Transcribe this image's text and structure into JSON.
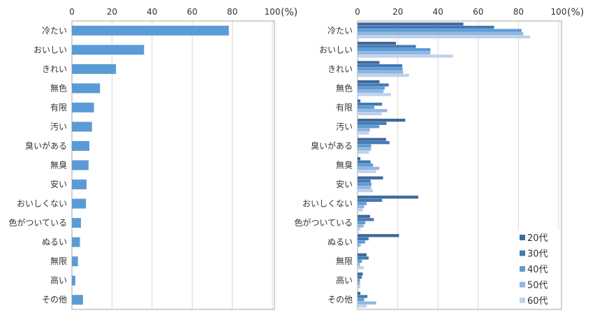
{
  "chart_data": [
    {
      "type": "bar",
      "orientation": "horizontal",
      "categories": [
        "冷たい",
        "おいしい",
        "きれい",
        "無色",
        "有限",
        "汚い",
        "臭いがある",
        "無臭",
        "安い",
        "おいしくない",
        "色がついている",
        "ぬるい",
        "無限",
        "高い",
        "その他"
      ],
      "values": [
        78.3,
        36,
        22,
        14,
        11,
        10,
        8.7,
        8.3,
        7.3,
        7,
        4.5,
        4,
        3,
        1.7,
        5.5
      ],
      "xlim": [
        0,
        100
      ],
      "xticks": [
        "0",
        "20",
        "40",
        "60",
        "80",
        "100"
      ],
      "unit": "(%)",
      "grid": true,
      "color": "#5b9bd5"
    },
    {
      "type": "bar",
      "orientation": "horizontal",
      "categories": [
        "冷たい",
        "おいしい",
        "きれい",
        "無色",
        "有限",
        "汚い",
        "臭いがある",
        "無臭",
        "安い",
        "おいしくない",
        "色がついている",
        "ぬるい",
        "無限",
        "高い",
        "その他"
      ],
      "xlim": [
        0,
        100
      ],
      "xticks": [
        "0",
        "20",
        "40",
        "60",
        "80",
        "100"
      ],
      "unit": "(%)",
      "grid": true,
      "legend": "bottom-right",
      "series": [
        {
          "name": "20代",
          "color": "#3d6a9a",
          "values": [
            52.6,
            19.1,
            10.9,
            10.9,
            1.4,
            23.7,
            14.2,
            1.4,
            12.7,
            30.2,
            6.2,
            20.6,
            4.5,
            2.6,
            1.4
          ]
        },
        {
          "name": "30代",
          "color": "#4479b4",
          "values": [
            67.9,
            29,
            22.2,
            15.5,
            12.2,
            14.4,
            15.9,
            6.5,
            6.5,
            12.2,
            8.1,
            5.5,
            5.5,
            2.1,
            4.9
          ]
        },
        {
          "name": "40代",
          "color": "#5b9bd5",
          "values": [
            81.6,
            36.2,
            22.4,
            13.5,
            8.3,
            10.8,
            6.7,
            7.7,
            6.9,
            4.5,
            3.8,
            3.8,
            2.2,
            1.2,
            3.3
          ]
        },
        {
          "name": "50代",
          "color": "#90b5df",
          "values": [
            82.4,
            36.2,
            22.7,
            12.9,
            14.7,
            6.2,
            6.7,
            10.8,
            6.7,
            3.3,
            3,
            1.6,
            1.2,
            1.2,
            9.2
          ]
        },
        {
          "name": "60代",
          "color": "#bed2ec",
          "values": [
            85.8,
            47.4,
            25.6,
            16.6,
            12,
            5.7,
            5.7,
            9.2,
            7.7,
            2.6,
            1.4,
            0,
            3,
            1.4,
            4.5
          ]
        }
      ]
    }
  ]
}
